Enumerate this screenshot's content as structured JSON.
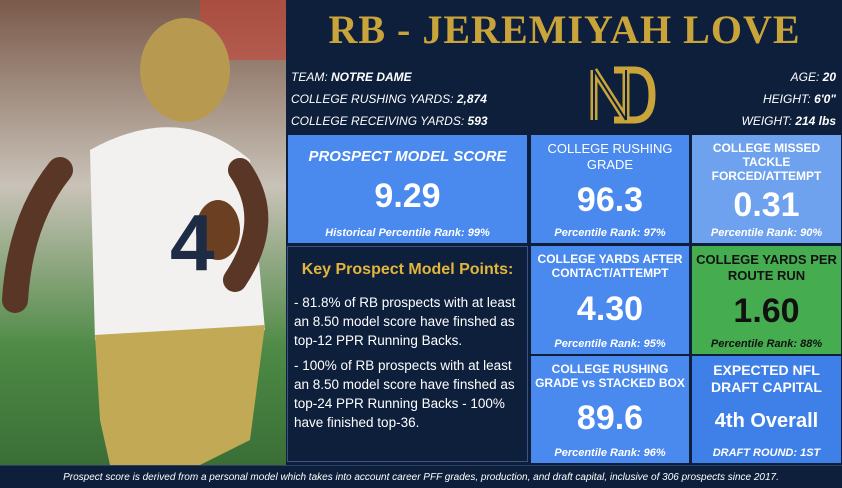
{
  "header": {
    "title": "RB - JEREMIYAH LOVE"
  },
  "info": {
    "left": [
      {
        "label": "TEAM:",
        "value": "NOTRE DAME"
      },
      {
        "label": "COLLEGE RUSHING YARDS:",
        "value": "2,874"
      },
      {
        "label": "COLLEGE RECEIVING YARDS:",
        "value": "593"
      }
    ],
    "right": [
      {
        "label": "AGE:",
        "value": "20"
      },
      {
        "label": "HEIGHT:",
        "value": "6'0\""
      },
      {
        "label": "WEIGHT:",
        "value": "214 lbs"
      }
    ]
  },
  "cards": [
    {
      "title": "PROSPECT MODEL SCORE",
      "value": "9.29",
      "rank": "Historical Percentile Rank: 99%"
    },
    {
      "title": "COLLEGE RUSHING GRADE",
      "value": "96.3",
      "rank": "Percentile Rank: 97%"
    },
    {
      "title": "COLLEGE MISSED TACKLE FORCED/ATTEMPT",
      "value": "0.31",
      "rank": "Percentile Rank: 90%"
    },
    {
      "title": "COLLEGE YARDS AFTER CONTACT/ATTEMPT",
      "value": "4.30",
      "rank": "Percentile Rank: 95%"
    },
    {
      "title": "COLLEGE YARDS PER ROUTE RUN",
      "value": "1.60",
      "rank": "Percentile Rank: 88%"
    },
    {
      "title": "COLLEGE RUSHING GRADE vs STACKED BOX",
      "value": "89.6",
      "rank": "Percentile Rank: 96%"
    },
    {
      "title": "EXPECTED NFL DRAFT CAPITAL",
      "value": "4th Overall",
      "rank": "DRAFT ROUND: 1ST"
    }
  ],
  "key_points": {
    "title": "Key Prospect Model Points:",
    "items": [
      "- 81.8% of RB prospects with at least an 8.50 model score have finshed as top-12 PPR Running Backs.",
      "- 100% of RB prospects with at least an 8.50 model score have finshed as top-24 PPR Running Backs - 100% have finished top-36."
    ]
  },
  "footer": "Prospect score is derived from a personal model which takes into account career PFF grades, production, and draft capital, inclusive of 306 prospects since 2017."
}
